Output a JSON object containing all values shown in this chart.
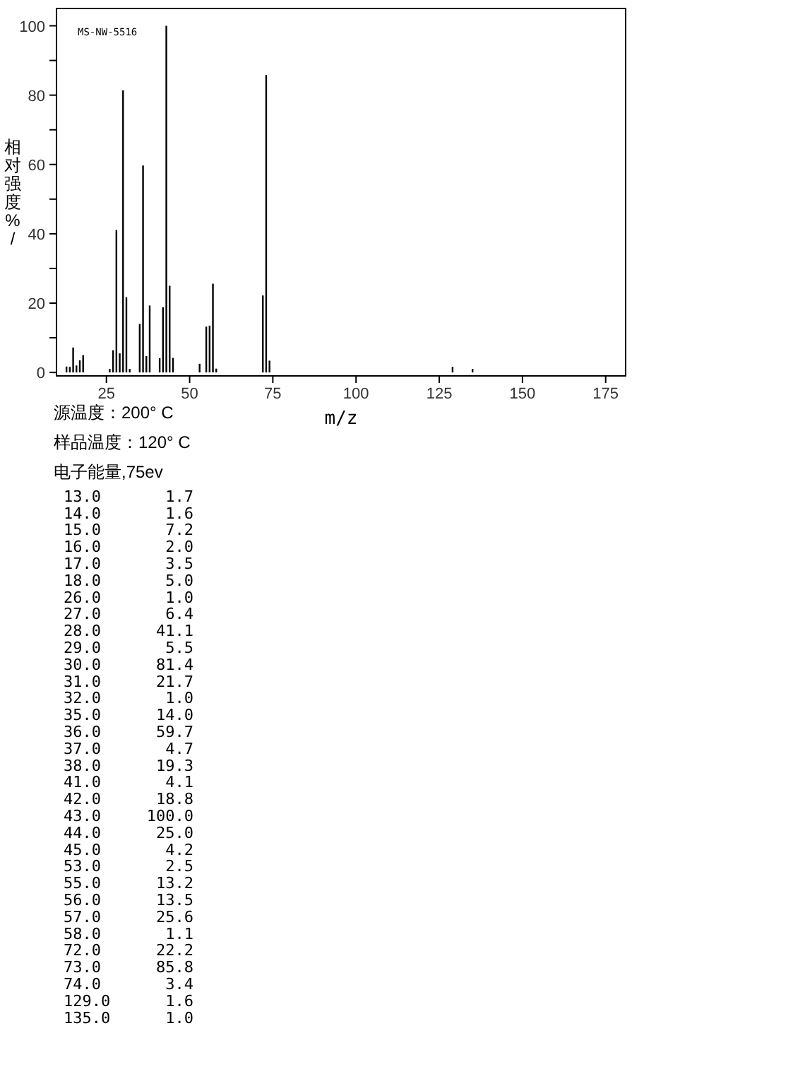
{
  "chart_data": {
    "type": "bar",
    "ylabel": "相对强度%/",
    "xlabel": "m/z",
    "x": [
      13,
      14,
      15,
      16,
      17,
      18,
      26,
      27,
      28,
      29,
      30,
      31,
      32,
      35,
      36,
      37,
      38,
      41,
      42,
      43,
      44,
      45,
      53,
      55,
      56,
      57,
      58,
      72,
      73,
      74,
      129,
      135
    ],
    "values": [
      1.7,
      1.6,
      7.2,
      2.0,
      3.5,
      5.0,
      1.0,
      6.4,
      41.1,
      5.5,
      81.4,
      21.7,
      1.0,
      14.0,
      59.7,
      4.7,
      19.3,
      4.1,
      18.8,
      100.0,
      25.0,
      4.2,
      2.5,
      13.2,
      13.5,
      25.6,
      1.1,
      22.2,
      85.8,
      3.4,
      1.6,
      1.0
    ],
    "color": "#000000",
    "xlim": [
      10,
      181
    ],
    "xticks": [
      25,
      50,
      75,
      100,
      125,
      150,
      175
    ],
    "ylim": [
      -1,
      105
    ],
    "yticks": [
      0,
      {
        "value": 10,
        "label": null
      },
      20,
      {
        "value": 30,
        "label": null
      },
      40,
      {
        "value": 50,
        "label": null
      },
      60,
      {
        "value": 70,
        "label": null
      },
      80,
      {
        "value": 90,
        "label": null
      },
      100
    ],
    "grid": false,
    "annotations": [
      "MS-NW-5516",
      "源温度：200° C",
      "样品温度：120° C",
      "电子能量,75ev",
      "13.0",
      "1.7",
      "14.0",
      "1.6",
      "15.0",
      "7.2",
      "16.0",
      "2.0",
      "17.0",
      "3.5",
      "18.0",
      "5.0",
      "26.0",
      "1.0",
      "27.0",
      "6.4",
      "28.0",
      "41.1",
      "29.0",
      "5.5",
      "30.0",
      "81.4",
      "31.0",
      "21.7",
      "32.0",
      "1.0",
      "35.0",
      "14.0",
      "36.0",
      "59.7",
      "37.0",
      "4.7",
      "38.0",
      "19.3",
      "41.0",
      "4.1",
      "42.0",
      "18.8",
      "43.0",
      "100.0",
      "44.0",
      "25.0",
      "45.0",
      "4.2",
      "53.0",
      "2.5",
      "55.0",
      "13.2",
      "56.0",
      "13.5",
      "57.0",
      "25.6",
      "58.0",
      "1.1",
      "72.0",
      "22.2",
      "73.0",
      "85.8",
      "74.0",
      "3.4",
      "129.0",
      "1.6",
      "135.0",
      "1.0"
    ]
  }
}
